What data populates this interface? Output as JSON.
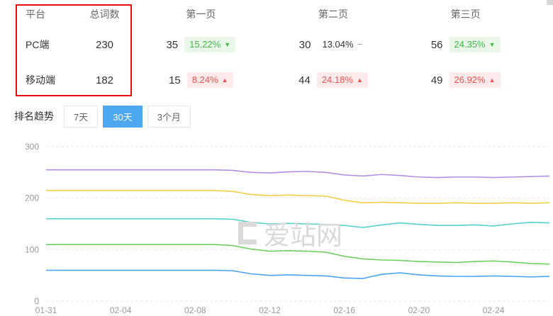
{
  "table": {
    "headers": [
      "平台",
      "总词数",
      "第一页",
      "第二页",
      "第三页"
    ],
    "rows": [
      {
        "platform": "PC端",
        "total": "230",
        "pages": [
          {
            "value": "35",
            "change": "15.22%",
            "arrow": "▼",
            "tone": "green"
          },
          {
            "value": "30",
            "change": "13.04%",
            "arrow": "−",
            "tone": "neutral"
          },
          {
            "value": "56",
            "change": "24.35%",
            "arrow": "▼",
            "tone": "green"
          }
        ]
      },
      {
        "platform": "移动端",
        "total": "182",
        "pages": [
          {
            "value": "15",
            "change": "8.24%",
            "arrow": "▲",
            "tone": "red"
          },
          {
            "value": "44",
            "change": "24.18%",
            "arrow": "▲",
            "tone": "red"
          },
          {
            "value": "49",
            "change": "26.92%",
            "arrow": "▲",
            "tone": "red"
          }
        ]
      }
    ]
  },
  "trend": {
    "title": "排名趋势",
    "tabs": [
      {
        "label": "7天",
        "active": false
      },
      {
        "label": "30天",
        "active": true
      },
      {
        "label": "3个月",
        "active": false
      }
    ]
  },
  "watermark": {
    "text": "爱站网"
  },
  "chart_data": {
    "type": "line",
    "title": "排名趋势 (30天)",
    "xlabel": "",
    "ylabel": "",
    "ylim": [
      0,
      300
    ],
    "yticks": [
      0,
      100,
      200,
      300
    ],
    "grid": "horizontal-dashed",
    "legend": "none",
    "x_labels": [
      "01-31",
      "02-04",
      "02-08",
      "02-12",
      "02-16",
      "02-20",
      "02-24"
    ],
    "x_tick_days": [
      0,
      4,
      8,
      12,
      16,
      20,
      24
    ],
    "series": [
      {
        "name": "purple",
        "color": "#b28fe4",
        "values": [
          255,
          255,
          255,
          255,
          255,
          255,
          255,
          255,
          255,
          255,
          254,
          250,
          249,
          251,
          252,
          250,
          245,
          243,
          246,
          244,
          241,
          240,
          241,
          241,
          240,
          241,
          242,
          243
        ]
      },
      {
        "name": "yellow",
        "color": "#f0cf4a",
        "values": [
          215,
          215,
          215,
          215,
          215,
          215,
          215,
          215,
          215,
          215,
          213,
          207,
          205,
          206,
          205,
          204,
          196,
          191,
          192,
          191,
          190,
          190,
          191,
          190,
          190,
          191,
          190,
          191
        ]
      },
      {
        "name": "teal",
        "color": "#56d1cb",
        "values": [
          160,
          160,
          160,
          160,
          160,
          160,
          160,
          160,
          160,
          160,
          159,
          153,
          150,
          151,
          150,
          149,
          147,
          143,
          148,
          152,
          149,
          147,
          147,
          148,
          146,
          150,
          153,
          152
        ]
      },
      {
        "name": "green",
        "color": "#6ecf5f",
        "values": [
          110,
          110,
          110,
          110,
          110,
          110,
          110,
          110,
          110,
          110,
          108,
          101,
          97,
          98,
          97,
          95,
          87,
          82,
          80,
          79,
          77,
          76,
          75,
          77,
          78,
          76,
          73,
          72
        ]
      },
      {
        "name": "blue",
        "color": "#4ba4f2",
        "values": [
          60,
          60,
          60,
          60,
          60,
          60,
          60,
          60,
          60,
          60,
          59,
          53,
          50,
          51,
          50,
          49,
          45,
          44,
          52,
          55,
          51,
          49,
          48,
          48,
          49,
          48,
          47,
          48
        ]
      }
    ]
  }
}
